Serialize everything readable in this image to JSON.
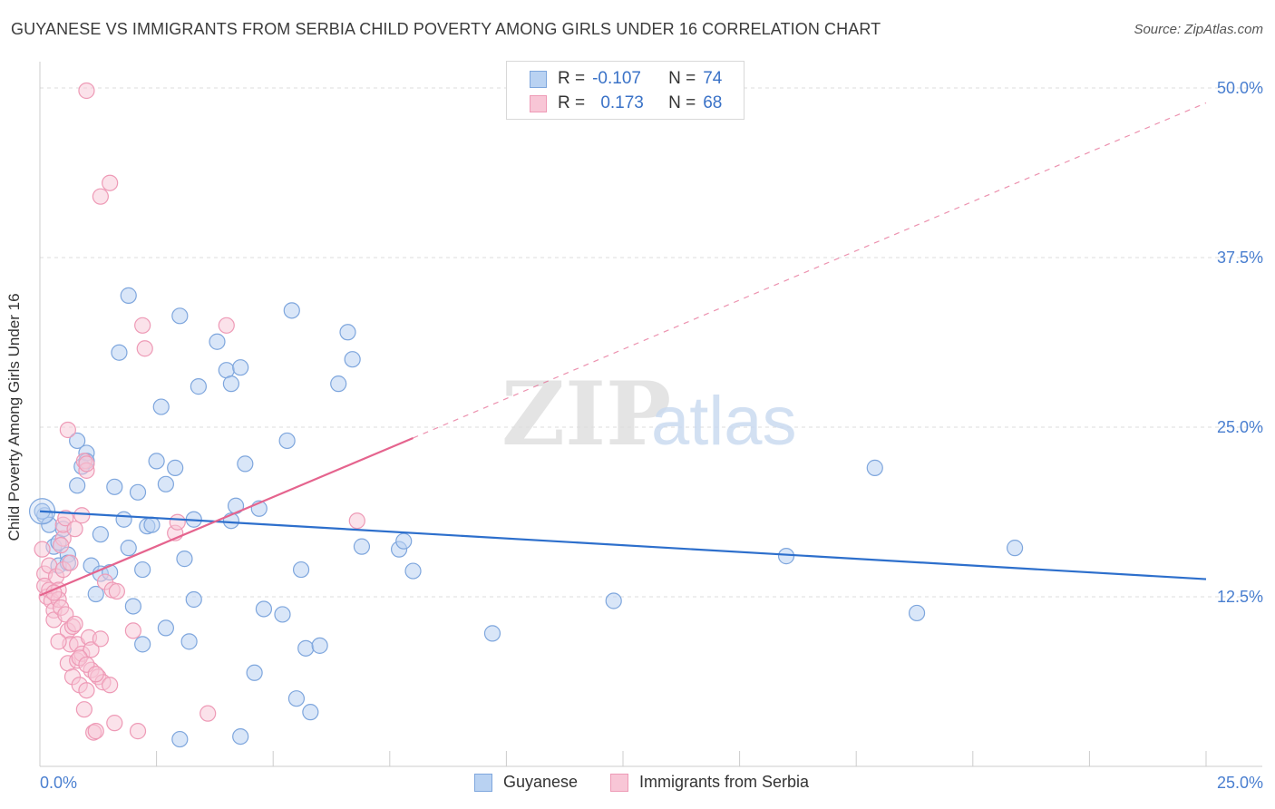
{
  "title": "GUYANESE VS IMMIGRANTS FROM SERBIA CHILD POVERTY AMONG GIRLS UNDER 16 CORRELATION CHART",
  "source": "Source: ZipAtlas.com",
  "legend": {
    "row1": {
      "r_label": "R =",
      "r_value": "-0.107",
      "n_label": "N =",
      "n_value": "74"
    },
    "row2": {
      "r_label": "R =",
      "r_value": "0.173",
      "n_label": "N =",
      "n_value": "68"
    }
  },
  "colors": {
    "blue_fill": "#b9d2f2",
    "blue_stroke": "#7ea6dd",
    "blue_line": "#2d6fcc",
    "pink_fill": "#f8c6d6",
    "pink_stroke": "#ee9ab6",
    "pink_line": "#e5648e",
    "axis_text": "#4a7fd0"
  },
  "chart_data": {
    "type": "scatter",
    "title": "GUYANESE VS IMMIGRANTS FROM SERBIA CHILD POVERTY AMONG GIRLS UNDER 16 CORRELATION CHART",
    "xlabel": "",
    "ylabel": "Child Poverty Among Girls Under 16",
    "xlim": [
      0,
      25
    ],
    "ylim": [
      0,
      50
    ],
    "x_ticks": [
      "0.0%",
      "25.0%"
    ],
    "y_ticks": [
      "12.5%",
      "25.0%",
      "37.5%",
      "50.0%"
    ],
    "watermark": {
      "zip": "ZIP",
      "atlas": "atlas"
    },
    "series": [
      {
        "name": "Guyanese",
        "R": -0.107,
        "N": 74,
        "trend": {
          "x0": 0,
          "y0": 18.8,
          "x1": 25,
          "y1": 13.8
        },
        "points": [
          [
            0.1,
            18.5
          ],
          [
            0.2,
            17.8
          ],
          [
            0.3,
            16.2
          ],
          [
            0.4,
            16.5
          ],
          [
            0.4,
            14.8
          ],
          [
            0.5,
            17.5
          ],
          [
            0.6,
            15.6
          ],
          [
            0.6,
            15.0
          ],
          [
            0.8,
            24.0
          ],
          [
            0.8,
            20.7
          ],
          [
            0.9,
            22.1
          ],
          [
            1.0,
            23.1
          ],
          [
            1.0,
            22.5
          ],
          [
            1.1,
            14.8
          ],
          [
            1.2,
            12.7
          ],
          [
            1.3,
            17.1
          ],
          [
            1.3,
            14.2
          ],
          [
            1.5,
            14.3
          ],
          [
            1.6,
            20.6
          ],
          [
            1.7,
            30.5
          ],
          [
            1.8,
            18.2
          ],
          [
            1.9,
            34.7
          ],
          [
            1.9,
            16.1
          ],
          [
            2.0,
            11.8
          ],
          [
            2.1,
            20.2
          ],
          [
            2.2,
            9.0
          ],
          [
            2.2,
            14.5
          ],
          [
            2.3,
            17.7
          ],
          [
            2.4,
            17.8
          ],
          [
            2.5,
            22.5
          ],
          [
            2.6,
            26.5
          ],
          [
            2.7,
            20.8
          ],
          [
            2.7,
            10.2
          ],
          [
            2.9,
            22.0
          ],
          [
            3.0,
            33.2
          ],
          [
            3.0,
            2.0
          ],
          [
            3.1,
            15.3
          ],
          [
            3.2,
            9.2
          ],
          [
            3.3,
            18.2
          ],
          [
            3.3,
            12.3
          ],
          [
            3.4,
            28.0
          ],
          [
            3.8,
            31.3
          ],
          [
            4.0,
            29.2
          ],
          [
            4.1,
            28.2
          ],
          [
            4.1,
            18.1
          ],
          [
            4.2,
            19.2
          ],
          [
            4.3,
            29.4
          ],
          [
            4.3,
            2.2
          ],
          [
            4.4,
            22.3
          ],
          [
            4.6,
            6.9
          ],
          [
            4.7,
            19.0
          ],
          [
            4.8,
            11.6
          ],
          [
            5.2,
            11.2
          ],
          [
            5.3,
            24.0
          ],
          [
            5.4,
            33.6
          ],
          [
            5.5,
            5.0
          ],
          [
            5.6,
            14.5
          ],
          [
            5.7,
            8.7
          ],
          [
            5.8,
            4.0
          ],
          [
            6.0,
            8.9
          ],
          [
            6.4,
            28.2
          ],
          [
            6.6,
            32.0
          ],
          [
            6.7,
            30.0
          ],
          [
            6.9,
            16.2
          ],
          [
            7.7,
            16.0
          ],
          [
            7.8,
            16.6
          ],
          [
            8.0,
            14.4
          ],
          [
            9.7,
            9.8
          ],
          [
            12.3,
            12.2
          ],
          [
            16.0,
            15.5
          ],
          [
            17.9,
            22.0
          ],
          [
            18.8,
            11.3
          ],
          [
            20.9,
            16.1
          ],
          [
            0.05,
            18.8
          ]
        ]
      },
      {
        "name": "Immigrants from Serbia",
        "R": 0.173,
        "N": 68,
        "trend": {
          "x0": 0,
          "y0": 12.6,
          "x1": 8.0,
          "y1": 24.2
        },
        "trend_extension": {
          "x0": 8.0,
          "y0": 24.2,
          "x1": 25,
          "y1": 48.9
        },
        "points": [
          [
            0.05,
            16.0
          ],
          [
            0.1,
            14.2
          ],
          [
            0.1,
            13.3
          ],
          [
            0.15,
            12.5
          ],
          [
            0.2,
            14.8
          ],
          [
            0.2,
            13.0
          ],
          [
            0.25,
            12.2
          ],
          [
            0.3,
            11.5
          ],
          [
            0.3,
            10.8
          ],
          [
            0.35,
            14.0
          ],
          [
            0.4,
            13.0
          ],
          [
            0.4,
            12.3
          ],
          [
            0.45,
            11.7
          ],
          [
            0.5,
            16.8
          ],
          [
            0.5,
            17.8
          ],
          [
            0.5,
            14.5
          ],
          [
            0.55,
            18.3
          ],
          [
            0.6,
            24.8
          ],
          [
            0.6,
            10.0
          ],
          [
            0.6,
            7.6
          ],
          [
            0.65,
            9.0
          ],
          [
            0.7,
            10.3
          ],
          [
            0.7,
            6.6
          ],
          [
            0.75,
            17.5
          ],
          [
            0.8,
            7.8
          ],
          [
            0.8,
            9.0
          ],
          [
            0.85,
            6.0
          ],
          [
            0.9,
            8.3
          ],
          [
            0.9,
            18.5
          ],
          [
            0.95,
            22.5
          ],
          [
            0.95,
            4.2
          ],
          [
            1.0,
            21.8
          ],
          [
            1.0,
            22.3
          ],
          [
            1.0,
            5.6
          ],
          [
            1.05,
            9.5
          ],
          [
            1.1,
            8.6
          ],
          [
            1.1,
            7.1
          ],
          [
            1.15,
            2.5
          ],
          [
            1.2,
            2.6
          ],
          [
            1.25,
            6.6
          ],
          [
            1.3,
            42.0
          ],
          [
            1.3,
            9.4
          ],
          [
            1.35,
            6.2
          ],
          [
            1.4,
            13.6
          ],
          [
            1.5,
            6.0
          ],
          [
            1.5,
            43.0
          ],
          [
            1.55,
            13.0
          ],
          [
            1.6,
            3.2
          ],
          [
            1.65,
            12.9
          ],
          [
            1.0,
            49.8
          ],
          [
            2.0,
            10.0
          ],
          [
            2.1,
            2.6
          ],
          [
            2.2,
            32.5
          ],
          [
            2.25,
            30.8
          ],
          [
            2.9,
            17.2
          ],
          [
            2.95,
            18.0
          ],
          [
            3.6,
            3.9
          ],
          [
            4.0,
            32.5
          ],
          [
            6.8,
            18.1
          ],
          [
            0.3,
            12.8
          ],
          [
            0.45,
            16.3
          ],
          [
            0.55,
            11.2
          ],
          [
            0.65,
            15.0
          ],
          [
            0.75,
            10.5
          ],
          [
            0.85,
            8.0
          ],
          [
            1.0,
            7.5
          ],
          [
            1.2,
            6.8
          ],
          [
            0.4,
            9.2
          ]
        ]
      }
    ]
  },
  "bottom_legend": {
    "series1": "Guyanese",
    "series2": "Immigrants from Serbia"
  }
}
